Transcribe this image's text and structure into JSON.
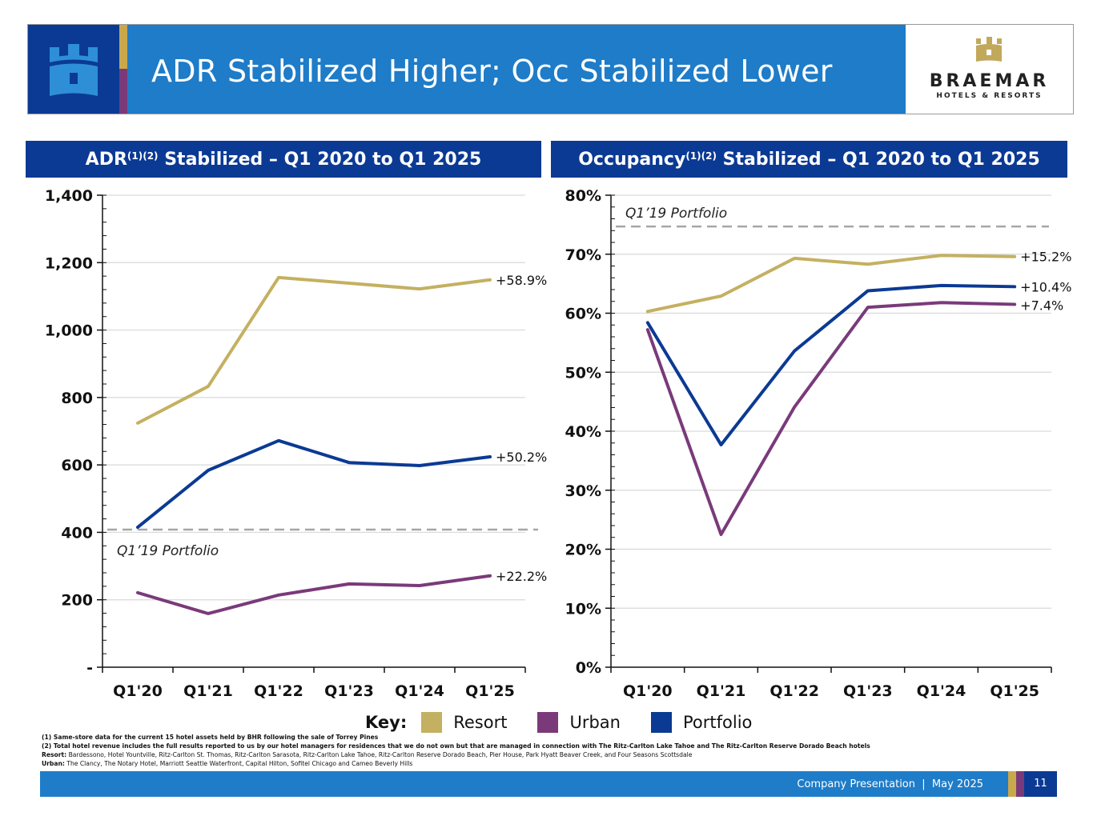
{
  "header": {
    "title": "ADR Stabilized Higher; Occ Stabilized Lower",
    "logo_name": "BRAEMAR",
    "logo_sub": "HOTELS & RESORTS"
  },
  "panels": {
    "left": {
      "title_main": "ADR",
      "title_sup": "(1)(2)",
      "title_rest": " Stabilized – Q1 2020 to Q1 2025"
    },
    "right": {
      "title_main": "Occupancy",
      "title_sup": "(1)(2)",
      "title_rest": " Stabilized – Q1 2020 to Q1 2025"
    }
  },
  "colors": {
    "resort": "#c4b061",
    "urban": "#7a3a7a",
    "portfolio": "#0b3a94",
    "baseline": "#a6a6a6",
    "grid": "#d9d9d9"
  },
  "chart_data": [
    {
      "type": "line",
      "title": "ADR Stabilized – Q1 2020 to Q1 2025",
      "categories": [
        "Q1'20",
        "Q1'21",
        "Q1'22",
        "Q1'23",
        "Q1'24",
        "Q1'25"
      ],
      "ylim": [
        0,
        1400
      ],
      "yticks": [
        0,
        200,
        400,
        600,
        800,
        1000,
        1200,
        1400
      ],
      "ytick_labels": [
        "-",
        "200",
        "400",
        "600",
        "800",
        "1,000",
        "1,200",
        "1,400"
      ],
      "grid": true,
      "series": [
        {
          "name": "Resort",
          "key": "resort",
          "values": [
            724,
            833,
            1156,
            1139,
            1122,
            1149
          ],
          "end_label": "+58.9%"
        },
        {
          "name": "Portfolio",
          "key": "portfolio",
          "values": [
            415,
            584,
            672,
            607,
            598,
            624
          ],
          "end_label": "+50.2%"
        },
        {
          "name": "Urban",
          "key": "urban",
          "values": [
            221,
            159,
            214,
            247,
            242,
            271
          ],
          "end_label": "+22.2%"
        }
      ],
      "baseline": {
        "label": "Q1’19 Portfolio",
        "value": 408,
        "label_position": "below"
      }
    },
    {
      "type": "line",
      "title": "Occupancy Stabilized – Q1 2020 to Q1 2025",
      "categories": [
        "Q1'20",
        "Q1'21",
        "Q1'22",
        "Q1'23",
        "Q1'24",
        "Q1'25"
      ],
      "ylim": [
        0,
        80
      ],
      "yticks": [
        0,
        10,
        20,
        30,
        40,
        50,
        60,
        70,
        80
      ],
      "ytick_labels": [
        "0%",
        "10%",
        "20%",
        "30%",
        "40%",
        "50%",
        "60%",
        "70%",
        "80%"
      ],
      "grid": true,
      "series": [
        {
          "name": "Resort",
          "key": "resort",
          "values": [
            60.3,
            62.9,
            69.3,
            68.3,
            69.8,
            69.6
          ],
          "end_label": "+15.2%"
        },
        {
          "name": "Portfolio",
          "key": "portfolio",
          "values": [
            58.4,
            37.7,
            53.6,
            63.8,
            64.7,
            64.5
          ],
          "end_label": "+10.4%"
        },
        {
          "name": "Urban",
          "key": "urban",
          "values": [
            57.2,
            22.5,
            44.1,
            61.0,
            61.8,
            61.5
          ],
          "end_label": "+7.4%"
        }
      ],
      "baseline": {
        "label": "Q1’19 Portfolio",
        "value": 74.7,
        "label_position": "above"
      }
    }
  ],
  "key": {
    "label": "Key:",
    "items": [
      {
        "name": "Resort",
        "color": "#c4b061"
      },
      {
        "name": "Urban",
        "color": "#7a3a7a"
      },
      {
        "name": "Portfolio",
        "color": "#0b3a94"
      }
    ]
  },
  "footnotes": {
    "note1": "(1) Same-store data for the current 15 hotel assets held by BHR following the sale of Torrey Pines",
    "note2": "(2) Total hotel revenue includes the full results reported to us by our hotel managers for residences that we do not own but that are managed in connection with The Ritz-Carlton Lake Tahoe and The Ritz-Carlton Reserve Dorado Beach hotels",
    "resort_label": "Resort:",
    "resort_text": " Bardessono, Hotel Yountville,  Ritz-Carlton St. Thomas, Ritz-Carlton Sarasota, Ritz-Carlton Lake Tahoe, Ritz-Carlton Reserve Dorado Beach, Pier House, Park Hyatt Beaver Creek, and Four Seasons Scottsdale",
    "urban_label": "Urban:",
    "urban_text": " The Clancy, The Notary Hotel, Marriott Seattle Waterfront, Capital Hilton, Sofitel Chicago and Cameo Beverly Hills"
  },
  "footer": {
    "text": "Company Presentation  |  May 2025",
    "page_number": "11"
  }
}
